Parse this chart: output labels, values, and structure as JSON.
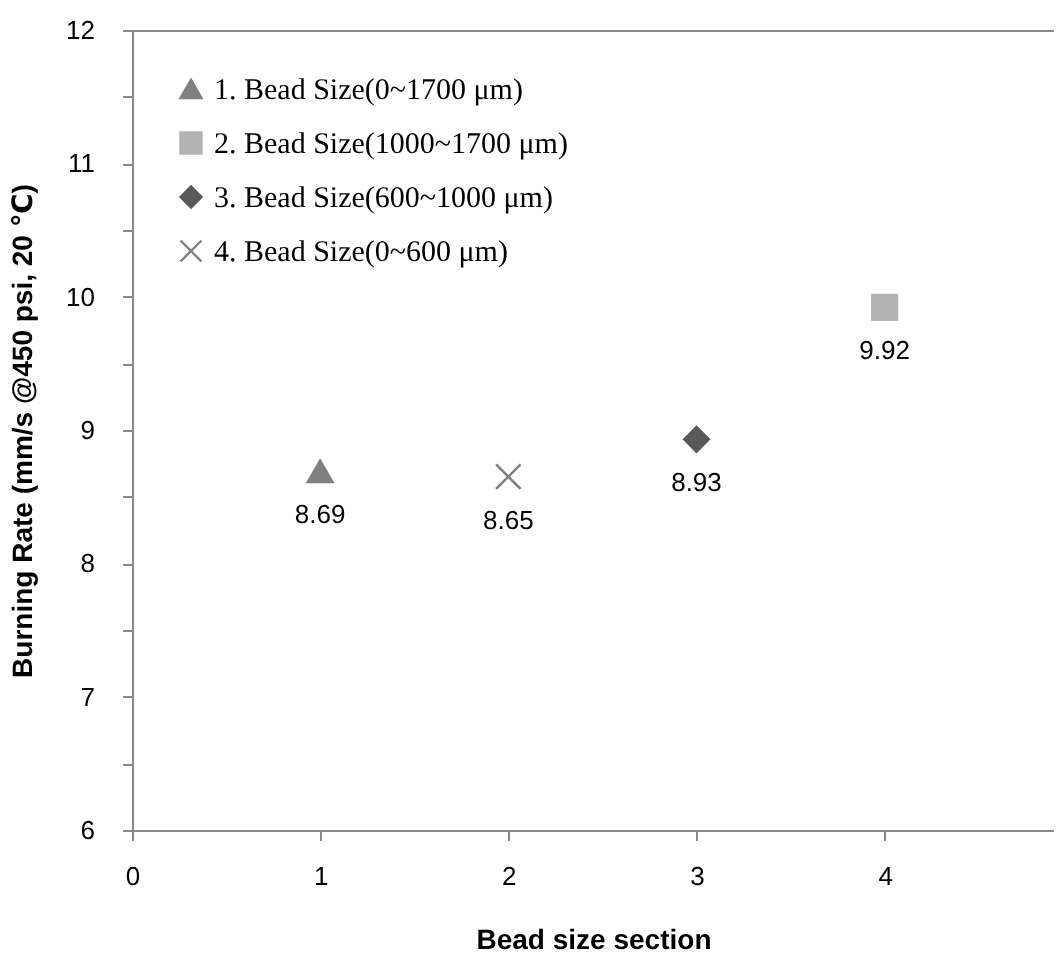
{
  "chart_data": {
    "type": "scatter",
    "xlabel": "Bead  size section",
    "ylabel": "Burning Rate  (mm/s @450  psi, 20 ℃)",
    "xlim": [
      0,
      4.9
    ],
    "xticks": [
      0,
      1,
      2,
      3,
      4
    ],
    "ylim": [
      6,
      12
    ],
    "yticks": [
      6,
      {
        "value": 6.5,
        "label": null
      },
      7,
      {
        "value": 7.5,
        "label": null
      },
      8,
      {
        "value": 8.5,
        "label": null
      },
      9,
      {
        "value": 9.5,
        "label": null
      },
      10,
      {
        "value": 10.5,
        "label": null
      },
      11,
      {
        "value": 11.5,
        "label": null
      },
      12
    ],
    "grid": false,
    "legend": "top left",
    "data_labels": true,
    "series": [
      {
        "name": "1. Bead Size(0~1700 μm)",
        "color": "#808080",
        "marker": "triangle",
        "x": [
          1
        ],
        "values": [
          8.69
        ]
      },
      {
        "name": "2. Bead Size(1000~1700 μm)",
        "color": "#b3b3b3",
        "marker": "square",
        "x": [
          4
        ],
        "values": [
          9.92
        ]
      },
      {
        "name": "3. Bead Size(600~1000 μm)",
        "color": "#595959",
        "marker": "diamond",
        "x": [
          3
        ],
        "values": [
          8.93
        ]
      },
      {
        "name": "4. Bead Size(0~600 μm)",
        "color": "#808080",
        "marker": "cross",
        "x": [
          2
        ],
        "values": [
          8.65
        ]
      }
    ]
  }
}
